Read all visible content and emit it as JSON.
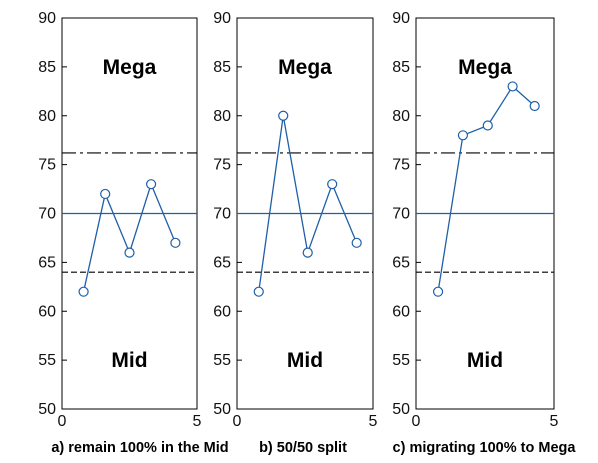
{
  "chart_data": [
    {
      "type": "line",
      "x": [
        0.8,
        1.6,
        2.5,
        3.3,
        4.2
      ],
      "series": [
        {
          "values": [
            62,
            72,
            66,
            73,
            67
          ]
        }
      ],
      "xlim": [
        0,
        5
      ],
      "ylim": [
        50,
        90
      ],
      "xticks": [
        "0",
        "5"
      ],
      "yticks": [
        "50",
        "55",
        "60",
        "65",
        "70",
        "75",
        "80",
        "85",
        "90"
      ],
      "center_line": 70,
      "control_limits": {
        "upper": 76.2,
        "lower": 64
      },
      "upper_region_label": "Mega",
      "lower_region_label": "Mid",
      "caption": "a) remain 100% in the Mid"
    },
    {
      "type": "line",
      "x": [
        0.8,
        1.7,
        2.6,
        3.5,
        4.4
      ],
      "series": [
        {
          "values": [
            62,
            80,
            66,
            73,
            67
          ]
        }
      ],
      "xlim": [
        0,
        5
      ],
      "ylim": [
        50,
        90
      ],
      "xticks": [
        "0",
        "5"
      ],
      "yticks": [
        "50",
        "55",
        "60",
        "65",
        "70",
        "75",
        "80",
        "85",
        "90"
      ],
      "center_line": 70,
      "control_limits": {
        "upper": 76.2,
        "lower": 64
      },
      "upper_region_label": "Mega",
      "lower_region_label": "Mid",
      "caption": "b) 50/50 split"
    },
    {
      "type": "line",
      "x": [
        0.8,
        1.7,
        2.6,
        3.5,
        4.3
      ],
      "series": [
        {
          "values": [
            62,
            78,
            79,
            83,
            81
          ]
        }
      ],
      "xlim": [
        0,
        5
      ],
      "ylim": [
        50,
        90
      ],
      "xticks": [
        "0",
        "5"
      ],
      "yticks": [
        "50",
        "55",
        "60",
        "65",
        "70",
        "75",
        "80",
        "85",
        "90"
      ],
      "center_line": 70,
      "control_limits": {
        "upper": 76.2,
        "lower": 64
      },
      "upper_region_label": "Mega",
      "lower_region_label": "Mid",
      "caption": "c) migrating 100% to Mega"
    }
  ],
  "colors": {
    "series": "#1f5fa8",
    "limits": "#000000",
    "frame": "#000000"
  }
}
